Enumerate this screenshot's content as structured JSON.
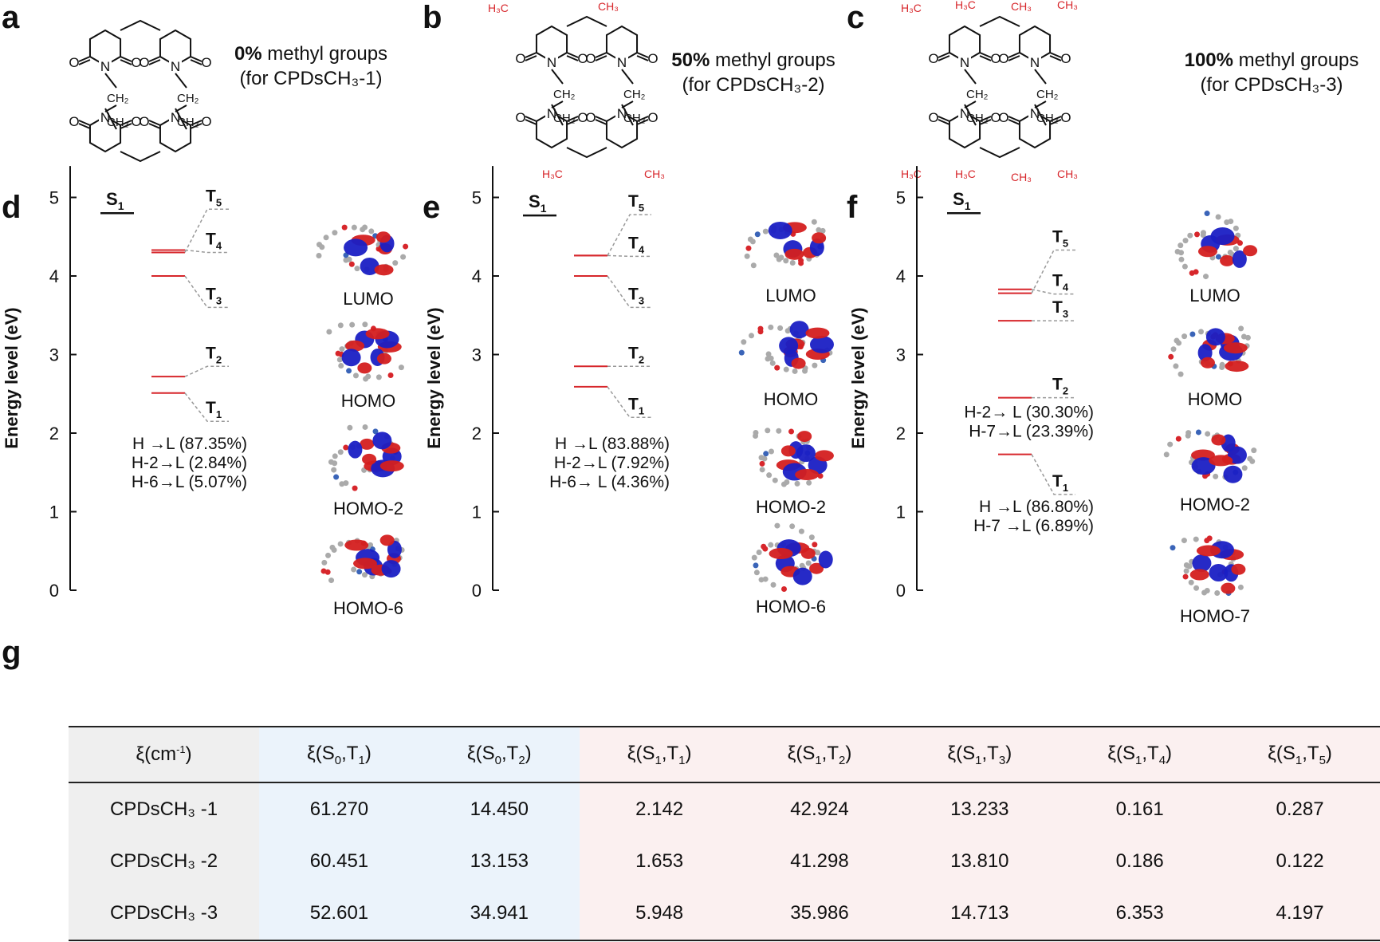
{
  "panels": {
    "a": {
      "label": "a",
      "bold": "0%",
      "rest": " methyl groups",
      "sub": "(for CPDsCH₃-1)"
    },
    "b": {
      "label": "b",
      "bold": "50%",
      "rest": " methyl groups",
      "sub": "(for CPDsCH₃-2)"
    },
    "c": {
      "label": "c",
      "bold": "100%",
      "rest": " methyl groups",
      "sub": "(for CPDsCH₃-3)"
    },
    "d": {
      "label": "d"
    },
    "e": {
      "label": "e"
    },
    "f": {
      "label": "f"
    },
    "g": {
      "label": "g"
    }
  },
  "structure_labels": {
    "ch2": "CH₂",
    "n": "N",
    "o": "O",
    "h3c": "H₃C",
    "ch3": "CH₃"
  },
  "colors": {
    "red": "#d7262b",
    "black": "#111111",
    "grey_dash": "#999999",
    "blue_cell": "#ebf3fb",
    "pink_cell": "#fbf0f0",
    "grey_cell": "#efefef"
  },
  "chart_data": [
    {
      "type": "energy-level-diagram",
      "panel": "d",
      "ylabel": "Energy level (eV)",
      "ylim": [
        0,
        5.4
      ],
      "yticks": [
        "0",
        "1",
        "2",
        "3",
        "4",
        "5"
      ],
      "S1": {
        "label": "S1",
        "energy": 4.8
      },
      "triplets": [
        {
          "label": "T1",
          "energy": 2.51,
          "label_energy": 2.15
        },
        {
          "label": "T2",
          "energy": 2.72,
          "label_energy": 2.85
        },
        {
          "label": "T3",
          "energy": 4.0,
          "label_energy": 3.6
        },
        {
          "label": "T4",
          "energy": 4.33,
          "label_energy": 4.3
        },
        {
          "label": "T5",
          "energy": 4.3,
          "label_energy": 4.85
        }
      ],
      "transitions": [
        "H →L (87.35%)",
        "H-2→L (2.84%)",
        "H-6→L (5.07%)"
      ],
      "transition_top_energy": 2.0,
      "orbitals": [
        "LUMO",
        "HOMO",
        "HOMO-2",
        "HOMO-6"
      ]
    },
    {
      "type": "energy-level-diagram",
      "panel": "e",
      "ylabel": "Energy level (eV)",
      "ylim": [
        0,
        5.4
      ],
      "yticks": [
        "0",
        "1",
        "2",
        "3",
        "4",
        "5"
      ],
      "S1": {
        "label": "S1",
        "energy": 4.77
      },
      "triplets": [
        {
          "label": "T1",
          "energy": 2.59,
          "label_energy": 2.2
        },
        {
          "label": "T2",
          "energy": 2.85,
          "label_energy": 2.85
        },
        {
          "label": "T3",
          "energy": 4.0,
          "label_energy": 3.6
        },
        {
          "label": "T4",
          "energy": 4.26,
          "label_energy": 4.25
        },
        {
          "label": "T5",
          "energy": 4.26,
          "label_energy": 4.78
        }
      ],
      "transitions": [
        "H →L (83.88%)",
        "H-2→L (7.92%)",
        "H-6→ L (4.36%)"
      ],
      "transition_top_energy": 2.0,
      "orbitals": [
        "LUMO",
        "HOMO",
        "HOMO-2",
        "HOMO-6"
      ]
    },
    {
      "type": "energy-level-diagram",
      "panel": "f",
      "ylabel": "Energy level (eV)",
      "ylim": [
        0,
        5.4
      ],
      "yticks": [
        "0",
        "1",
        "2",
        "3",
        "4",
        "5"
      ],
      "S1": {
        "label": "S1",
        "energy": 4.8
      },
      "triplets": [
        {
          "label": "T1",
          "energy": 1.73,
          "label_energy": 1.22
        },
        {
          "label": "T2",
          "energy": 2.45,
          "label_energy": 2.45
        },
        {
          "label": "T3",
          "energy": 3.43,
          "label_energy": 3.43
        },
        {
          "label": "T4",
          "energy": 3.83,
          "label_energy": 3.77
        },
        {
          "label": "T5",
          "energy": 3.78,
          "label_energy": 4.33
        }
      ],
      "transitions_t2": [
        "H-2→ L (30.30%)",
        "H-7→L (23.39%)"
      ],
      "transitions_t1": [
        "H →L (86.80%)",
        "H-7 →L (6.89%)"
      ],
      "orbitals": [
        "LUMO",
        "HOMO",
        "HOMO-2",
        "HOMO-7"
      ]
    }
  ],
  "table": {
    "headers": [
      "ξ(cm-1)",
      "ξ(S0,T1)",
      "ξ(S0,T2)",
      "ξ(S1,T1)",
      "ξ(S1,T2)",
      "ξ(S1,T3)",
      "ξ(S1,T4)",
      "ξ(S1,T5)"
    ],
    "rows": [
      [
        "CPDsCH₃ -1",
        "61.270",
        "14.450",
        "2.142",
        "42.924",
        "13.233",
        "0.161",
        "0.287"
      ],
      [
        "CPDsCH₃ -2",
        "60.451",
        "13.153",
        "1.653",
        "41.298",
        "13.810",
        "0.186",
        "0.122"
      ],
      [
        "CPDsCH₃ -3",
        "52.601",
        "34.941",
        "5.948",
        "35.986",
        "14.713",
        "6.353",
        "4.197"
      ]
    ]
  }
}
